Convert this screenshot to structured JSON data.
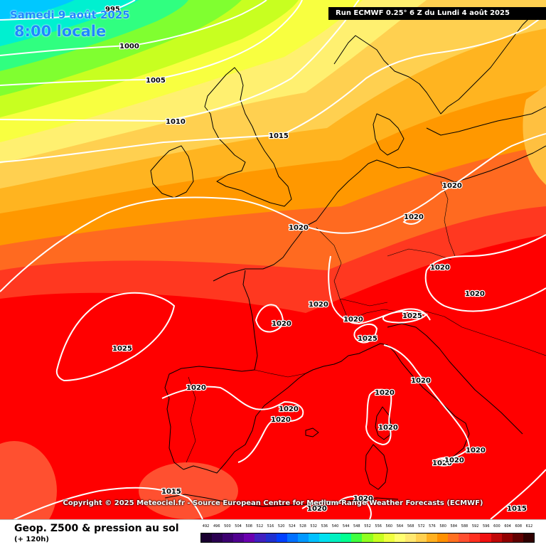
{
  "header": {
    "date": "Samedi 9 août 2025",
    "time": "8:00 locale",
    "run_info": "Run ECMWF 0.25° 6 Z du Lundi 4 août 2025"
  },
  "copyright": "Copyright © 2025 Meteociel.fr - Source European Centre for Medium-Range Weather Forecasts (ECMWF)",
  "footer": {
    "title": "Geop. Z500 & pression au sol",
    "subtitle": "(+ 120h)"
  },
  "legend": {
    "labels": [
      "492",
      "496",
      "500",
      "504",
      "508",
      "512",
      "516",
      "520",
      "524",
      "528",
      "532",
      "536",
      "540",
      "544",
      "548",
      "552",
      "556",
      "560",
      "564",
      "568",
      "572",
      "576",
      "580",
      "584",
      "588",
      "592",
      "596",
      "600",
      "604",
      "608",
      "612"
    ],
    "colors": [
      "#1a0030",
      "#2a0050",
      "#3c0070",
      "#500090",
      "#6a00b0",
      "#4020c0",
      "#2030d0",
      "#0040ff",
      "#0070ff",
      "#0098ff",
      "#00c0ff",
      "#00e0f0",
      "#00f0c0",
      "#00ff90",
      "#40ff40",
      "#90ff20",
      "#c8ff20",
      "#f0ff40",
      "#ffff70",
      "#ffe870",
      "#ffd050",
      "#ffb020",
      "#ff9000",
      "#ff7020",
      "#ff5030",
      "#ff3020",
      "#f01010",
      "#c00808",
      "#900000",
      "#600000",
      "#300000"
    ]
  },
  "isobars": [
    {
      "label": "995"
    },
    {
      "label": "1000"
    },
    {
      "label": "1005"
    },
    {
      "label": "1010"
    },
    {
      "label": "1015"
    },
    {
      "label": "1020"
    },
    {
      "label": "1020"
    },
    {
      "label": "1020"
    },
    {
      "label": "1020"
    },
    {
      "label": "1020"
    },
    {
      "label": "1020"
    },
    {
      "label": "1020"
    },
    {
      "label": "1020"
    },
    {
      "label": "1025"
    },
    {
      "label": "1025"
    },
    {
      "label": "1025"
    },
    {
      "label": "1020"
    },
    {
      "label": "1020"
    },
    {
      "label": "1020"
    },
    {
      "label": "1020"
    },
    {
      "label": "1020"
    },
    {
      "label": "1020"
    },
    {
      "label": "1020"
    },
    {
      "label": "1020"
    },
    {
      "label": "1015"
    },
    {
      "label": "1015"
    },
    {
      "label": "1020"
    },
    {
      "label": "1020"
    },
    {
      "label": "1020"
    }
  ]
}
